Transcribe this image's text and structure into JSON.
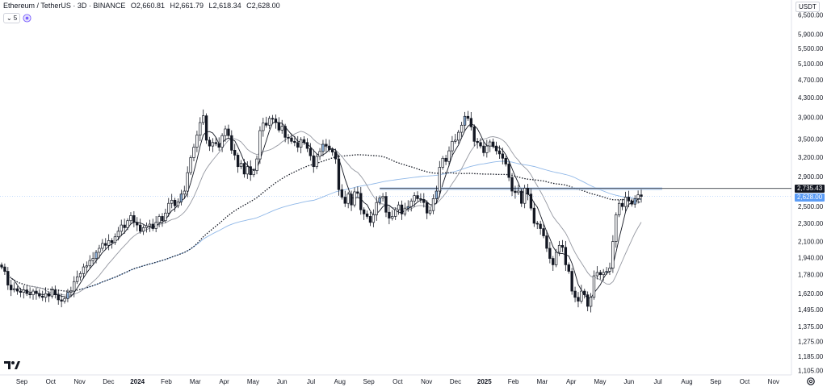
{
  "legend": {
    "title": "Ethereum / TetherUS · 3D · BINANCE",
    "o_label": "O",
    "o": "2,660.81",
    "h_label": "H",
    "h": "2,661.79",
    "l_label": "L",
    "l": "2,618.34",
    "c_label": "C",
    "c": "2,628.00",
    "interval_chip": "5"
  },
  "currency": "USDT",
  "colors": {
    "up": "#ffffff",
    "down": "#131722",
    "candle_border": "#131722",
    "up_highlight": "#8eb1d8",
    "ma_fast": "#131722",
    "ma_slow": "#9598a1",
    "ma_long": "#90b8e8",
    "ma_dotted": "#131722",
    "resistance_band": "#bcd3f0",
    "current_tag": "#5b9cf6",
    "level_tag": "#131722"
  },
  "chart_data": {
    "type": "candlestick",
    "title": "Ethereum / TetherUS · 3D · BINANCE",
    "price_axis_labels": [
      "6,500.00",
      "5,900.00",
      "5,500.00",
      "5,100.00",
      "4,700.00",
      "4,300.00",
      "3,900.00",
      "3,500.00",
      "3,200.00",
      "2,900.00",
      "2,500.00",
      "2,300.00",
      "2,100.00",
      "1,940.00",
      "1,780.00",
      "1,620.00",
      "1,495.00",
      "1,375.00",
      "1,275.00",
      "1,185.00",
      "1,105.00"
    ],
    "time_axis_labels": [
      "Sep",
      "Oct",
      "Nov",
      "Dec",
      "2024",
      "Feb",
      "Mar",
      "Apr",
      "May",
      "Jun",
      "Jul",
      "Aug",
      "Sep",
      "Oct",
      "Nov",
      "Dec",
      "2025",
      "Feb",
      "Mar",
      "Apr",
      "May",
      "Jun",
      "Jul",
      "Aug",
      "Sep",
      "Oct",
      "Nov"
    ],
    "bold_time_labels": [
      "2024",
      "2025"
    ],
    "log_scale": true,
    "ylim": [
      1080,
      7000
    ],
    "horizontal_level": 2735.43,
    "horizontal_level_label": "2,735.43",
    "current_price": 2628.0,
    "current_price_label": "2,628.00",
    "closes": [
      1850,
      1810,
      1690,
      1650,
      1660,
      1640,
      1630,
      1650,
      1620,
      1610,
      1640,
      1620,
      1600,
      1590,
      1620,
      1600,
      1650,
      1610,
      1570,
      1560,
      1580,
      1630,
      1640,
      1720,
      1760,
      1790,
      1850,
      1860,
      1910,
      1930,
      1990,
      2030,
      2080,
      2060,
      2110,
      2090,
      2150,
      2210,
      2280,
      2250,
      2330,
      2390,
      2310,
      2280,
      2210,
      2250,
      2270,
      2290,
      2240,
      2310,
      2380,
      2330,
      2420,
      2540,
      2580,
      2510,
      2560,
      2660,
      2700,
      2960,
      3190,
      3360,
      3570,
      3800,
      3930,
      3480,
      3380,
      3440,
      3420,
      3360,
      3560,
      3680,
      3560,
      3310,
      3230,
      3050,
      3100,
      2940,
      3050,
      2930,
      2990,
      3170,
      3650,
      3790,
      3750,
      3880,
      3870,
      3800,
      3660,
      3730,
      3530,
      3520,
      3460,
      3440,
      3360,
      3490,
      3440,
      3340,
      3220,
      3050,
      3210,
      3290,
      3410,
      3380,
      3320,
      3280,
      3170,
      2720,
      2620,
      2540,
      2660,
      2520,
      2690,
      2670,
      2460,
      2410,
      2380,
      2310,
      2400,
      2550,
      2610,
      2630,
      2430,
      2360,
      2380,
      2460,
      2520,
      2410,
      2480,
      2500,
      2570,
      2640,
      2600,
      2590,
      2550,
      2420,
      2450,
      2600,
      2700,
      3040,
      3180,
      3130,
      3300,
      3460,
      3480,
      3620,
      3750,
      3920,
      3880,
      3720,
      3460,
      3440,
      3380,
      3270,
      3380,
      3450,
      3380,
      3300,
      3250,
      3180,
      3090,
      2890,
      2700,
      2680,
      2700,
      2540,
      2740,
      2660,
      2480,
      2300,
      2290,
      2240,
      2160,
      2030,
      1930,
      1870,
      1990,
      2060,
      2040,
      1870,
      1810,
      1640,
      1590,
      1560,
      1640,
      1610,
      1520,
      1590,
      1770,
      1800,
      1780,
      1800,
      1810,
      1840,
      2100,
      2400,
      2540,
      2500,
      2620,
      2570,
      2530,
      2600,
      2650,
      2630
    ],
    "indicators": [
      {
        "type": "moving-average",
        "length": 5
      },
      {
        "type": "moving-average",
        "length": 14
      },
      {
        "type": "moving-average",
        "length": 100
      },
      {
        "type": "moving-average-dotted",
        "length": 61
      }
    ]
  }
}
